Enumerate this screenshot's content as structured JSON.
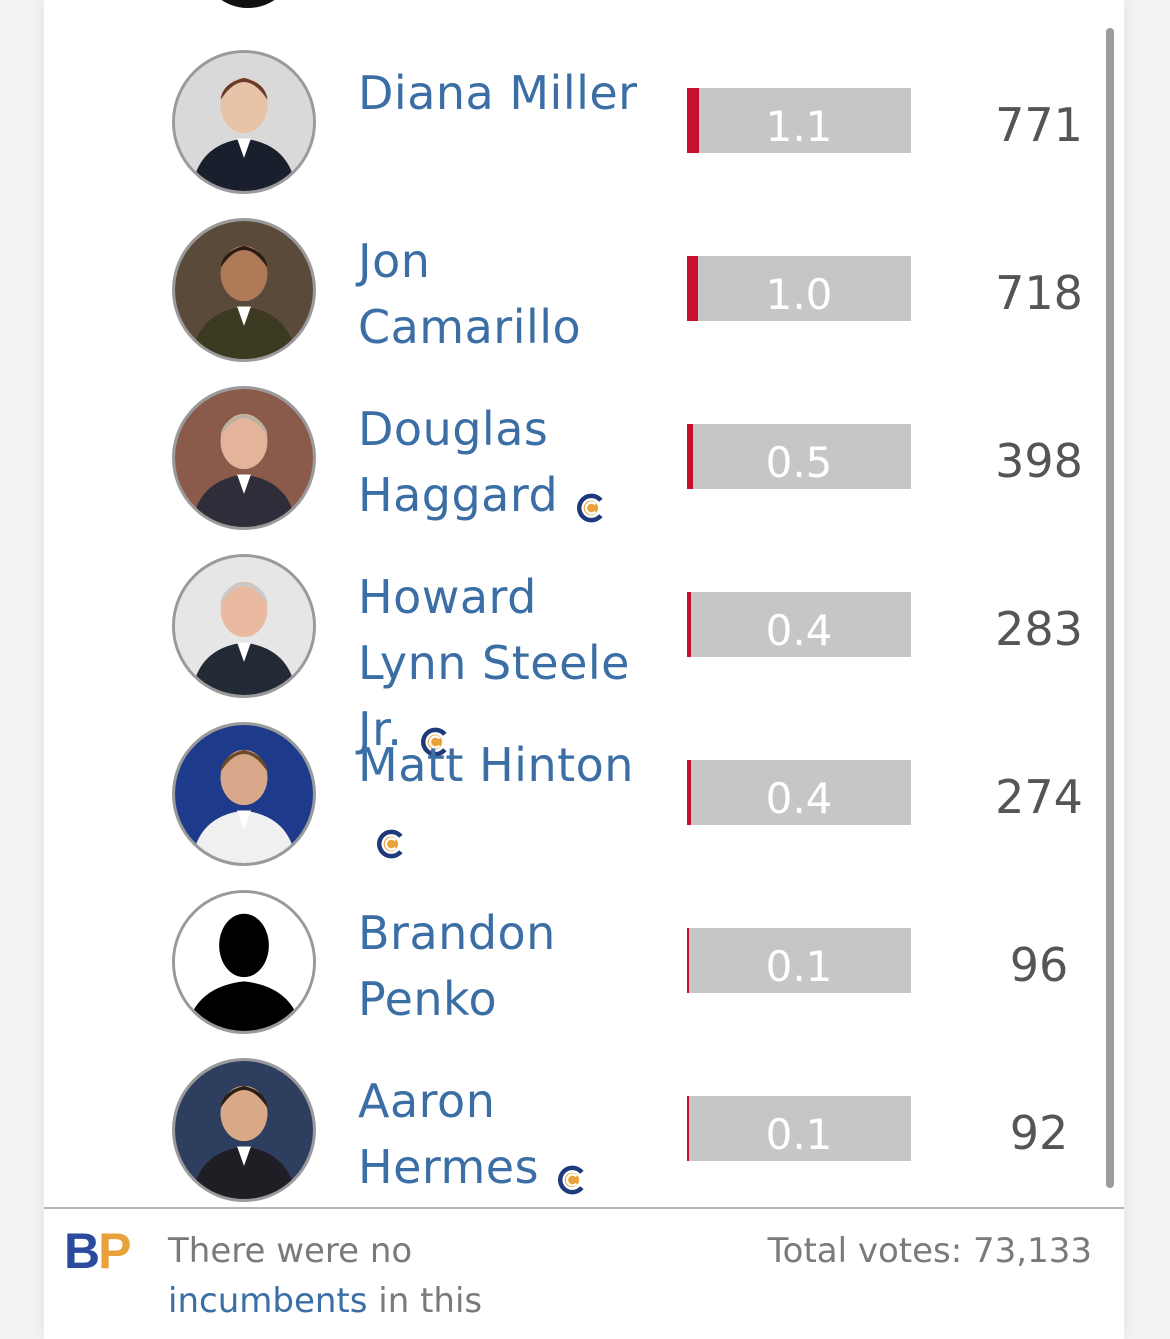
{
  "candidates": [
    {
      "name": "Diana Miller",
      "percent": "1.1",
      "percent_value": 1.1,
      "votes": "771",
      "badge": false
    },
    {
      "name": "Jon Camarillo",
      "percent": "1.0",
      "percent_value": 1.0,
      "votes": "718",
      "badge": false
    },
    {
      "name": "Douglas Haggard",
      "percent": "0.5",
      "percent_value": 0.5,
      "votes": "398",
      "badge": true
    },
    {
      "name": "Howard Lynn Steele Jr.",
      "percent": "0.4",
      "percent_value": 0.4,
      "votes": "283",
      "badge": true
    },
    {
      "name": "Matt Hinton",
      "percent": "0.4",
      "percent_value": 0.4,
      "votes": "274",
      "badge": true
    },
    {
      "name": "Brandon Penko",
      "percent": "0.1",
      "percent_value": 0.1,
      "votes": "96",
      "badge": false
    },
    {
      "name": "Aaron Hermes",
      "percent": "0.1",
      "percent_value": 0.1,
      "votes": "92",
      "badge": true
    }
  ],
  "footer": {
    "logo_b": "B",
    "logo_p": "P",
    "note_prefix": "There were no",
    "note_link": "incumbents",
    "note_suffix": "in this",
    "total_votes": "Total votes: 73,133"
  },
  "colors": {
    "name": "#3a6ea5",
    "bar": "#c6c6c6",
    "bar_fill": "#c8102e",
    "badge_navy": "#1f3a7a",
    "badge_orange": "#e9a23b"
  },
  "icons": {
    "badge": "candidate-connection-icon",
    "avatar_placeholder": "silhouette-icon"
  }
}
